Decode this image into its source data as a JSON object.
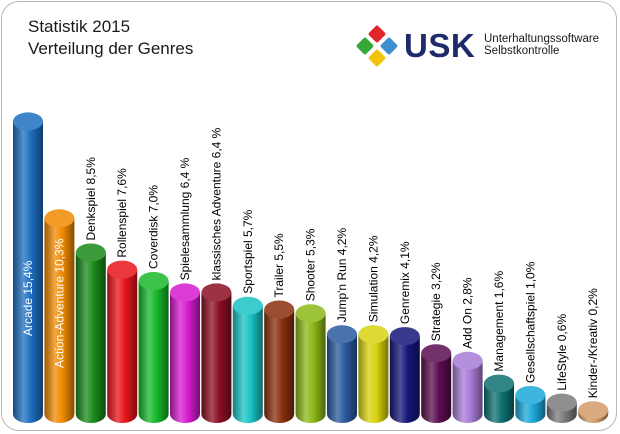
{
  "header": {
    "title": "Statistik 2015",
    "subtitle": "Verteilung der Genres"
  },
  "logo": {
    "name": "USK",
    "line1": "Unterhaltungssoftware",
    "line2": "Selbstkontrolle",
    "tile_colors": [
      "#e3262a",
      "#3d8fd0",
      "#36a838",
      "#f2c40f"
    ]
  },
  "chart_data": {
    "type": "bar",
    "ylim": [
      0,
      16
    ],
    "grid": false,
    "legend": "none",
    "categories": [
      "Arcade",
      "Action-Adventure",
      "Denkspiel",
      "Rollenspiel",
      "Coverdisk",
      "Spielesammlung",
      "klassisches Adventure",
      "Sportspiel",
      "Trailer",
      "Shooter",
      "Jump'n Run",
      "Simulation",
      "Genremix",
      "Strategie",
      "Add On",
      "Management",
      "Gesellschaftspiel",
      "LifeStyle",
      "Kinder-/Kreativ"
    ],
    "values": [
      15.4,
      10.3,
      8.5,
      7.6,
      7.0,
      6.4,
      6.4,
      5.7,
      5.5,
      5.3,
      4.2,
      4.2,
      4.1,
      3.2,
      2.8,
      1.6,
      1.0,
      0.6,
      0.2
    ],
    "labels": [
      "Arcade 15,4%",
      "Action-Adventure 10,3%",
      "Denkspiel 8,5%",
      "Rollenspiel 7,6%",
      "Coverdisk 7,0%",
      "Spielesammlung 6,4 %",
      "klassisches Adventure 6,4 %",
      "Sportspiel 5,7%",
      "Trailer 5,5%",
      "Shooter 5,3%",
      "Jump'n Run 4,2%",
      "Simulation 4,2%",
      "Genremix 4,1%",
      "Strategie 3,2%",
      "Add On 2,8%",
      "Management 1,6%",
      "Gesellschaftspiel 1,0%",
      "LifeStyle 0,6%",
      "Kinder-/Kreativ 0,2%"
    ],
    "colors": [
      "#1d6fc0",
      "#f08a00",
      "#1a8a1a",
      "#e8151b",
      "#18b82a",
      "#d61bd0",
      "#8b0f24",
      "#19c3c5",
      "#8a2f0c",
      "#8cb818",
      "#2a5aa0",
      "#d9d20f",
      "#16167a",
      "#5a0d4f",
      "#a77bd6",
      "#0d6f70",
      "#1ba8d8",
      "#7b7b7b",
      "#d29a6a"
    ],
    "label_colors": [
      "#ffffff",
      "#ffffff",
      "#000000",
      "#000000",
      "#000000",
      "#000000",
      "#000000",
      "#000000",
      "#000000",
      "#000000",
      "#000000",
      "#000000",
      "#000000",
      "#000000",
      "#000000",
      "#000000",
      "#000000",
      "#000000",
      "#000000"
    ],
    "label_inside": [
      true,
      true,
      false,
      false,
      false,
      false,
      false,
      false,
      false,
      false,
      false,
      false,
      false,
      false,
      false,
      false,
      false,
      false,
      false
    ]
  }
}
